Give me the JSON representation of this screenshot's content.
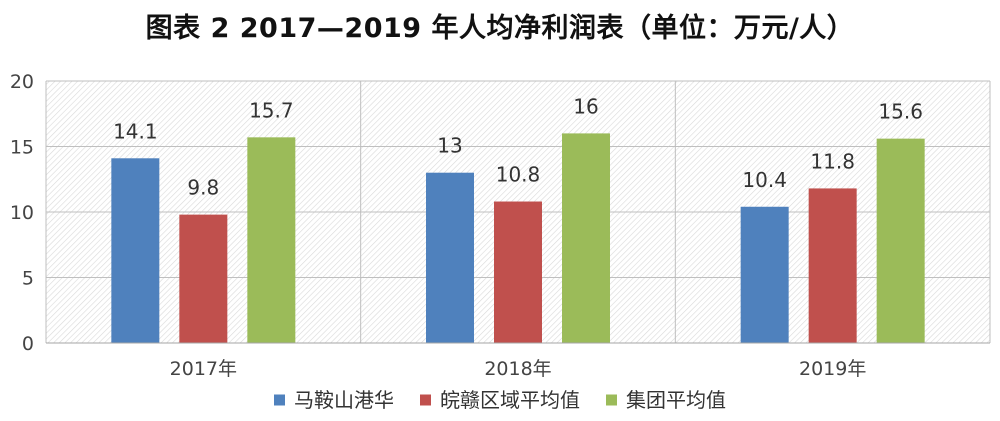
{
  "chart_data": {
    "type": "bar",
    "title": "图表 2 2017—2019 年人均净利润表（单位：万元/人）",
    "categories": [
      "2017年",
      "2018年",
      "2019年"
    ],
    "series": [
      {
        "name": "马鞍山港华",
        "color": "#4F81BD",
        "values": [
          14.1,
          13,
          10.4
        ]
      },
      {
        "name": "皖赣区域平均值",
        "color": "#C0504D",
        "values": [
          9.8,
          10.8,
          11.8
        ]
      },
      {
        "name": "集团平均值",
        "color": "#9BBB59",
        "values": [
          15.7,
          16,
          15.6
        ]
      }
    ],
    "ylim": [
      0,
      20
    ],
    "yticks": [
      0,
      5,
      10,
      15,
      20
    ],
    "xlabel": "",
    "ylabel": "",
    "grid": true,
    "legend": "bottom"
  }
}
